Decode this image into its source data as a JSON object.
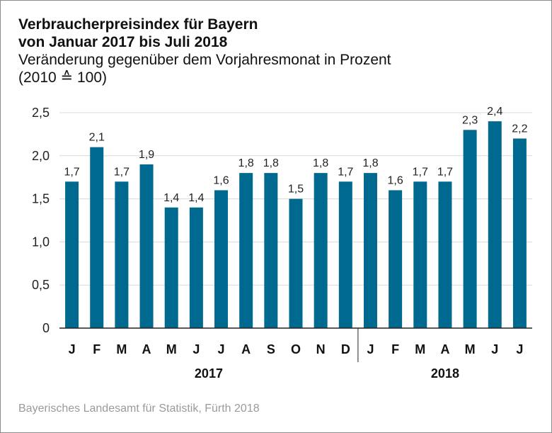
{
  "header": {
    "title_line1": "Verbraucherpreisindex für Bayern",
    "title_line2": "von Januar 2017 bis Juli 2018",
    "subtitle_line1": "Veränderung gegenüber dem Vorjahresmonat in Prozent",
    "subtitle_line2": "(2010 ≙ 100)"
  },
  "source": "Bayerisches Landesamt für Statistik, Fürth 2018",
  "colors": {
    "bar": "#00698f",
    "gridline": "#d8d8d8",
    "axis": "#222222"
  },
  "chart_data": {
    "type": "bar",
    "title": "Verbraucherpreisindex für Bayern von Januar 2017 bis Juli 2018",
    "ylabel": "Veränderung gegenüber dem Vorjahresmonat in Prozent",
    "ylim": [
      0,
      2.5
    ],
    "yticks": [
      0,
      0.5,
      1.0,
      1.5,
      2.0,
      2.5
    ],
    "ytick_labels": [
      "0",
      "0,5",
      "1,0",
      "1,5",
      "2,0",
      "2,5"
    ],
    "grid": true,
    "categories": [
      "J",
      "F",
      "M",
      "A",
      "M",
      "J",
      "J",
      "A",
      "S",
      "O",
      "N",
      "D",
      "J",
      "F",
      "M",
      "A",
      "M",
      "J",
      "J"
    ],
    "values": [
      1.7,
      2.1,
      1.7,
      1.9,
      1.4,
      1.4,
      1.6,
      1.8,
      1.8,
      1.5,
      1.8,
      1.7,
      1.8,
      1.6,
      1.7,
      1.7,
      2.3,
      2.4,
      2.2
    ],
    "value_labels": [
      "1,7",
      "2,1",
      "1,7",
      "1,9",
      "1,4",
      "1,4",
      "1,6",
      "1,8",
      "1,8",
      "1,5",
      "1,8",
      "1,7",
      "1,8",
      "1,6",
      "1,7",
      "1,7",
      "2,3",
      "2,4",
      "2,2"
    ],
    "groups": [
      {
        "label": "2017",
        "start": 0,
        "end": 11
      },
      {
        "label": "2018",
        "start": 12,
        "end": 18
      }
    ]
  }
}
